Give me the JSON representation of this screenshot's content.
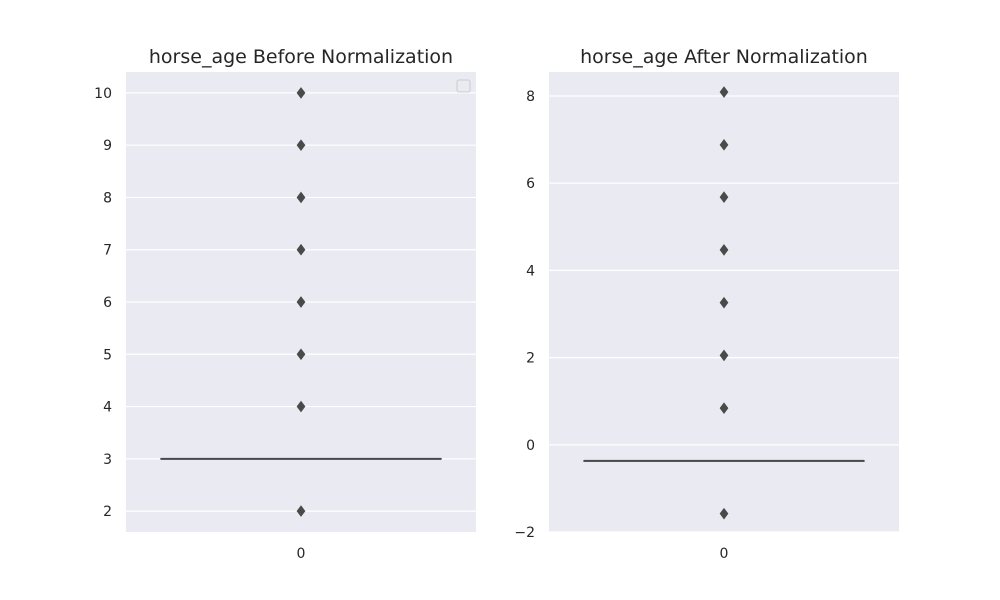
{
  "chart_data": [
    {
      "type": "box",
      "title": "horse_age Before Normalization",
      "xlabel": "",
      "ylabel": "",
      "categories": [
        "0"
      ],
      "ylim": [
        1.6,
        10.4
      ],
      "yticks": [
        2,
        3,
        4,
        5,
        6,
        7,
        8,
        9,
        10
      ],
      "ytick_labels": [
        "2",
        "3",
        "4",
        "5",
        "6",
        "7",
        "8",
        "9",
        "10"
      ],
      "box": {
        "q1": 3,
        "median": 3,
        "q3": 3,
        "whisker_low": 3,
        "whisker_high": 3
      },
      "outliers": [
        2,
        4,
        5,
        6,
        7,
        8,
        9,
        10
      ],
      "legend": "empty, top-right",
      "grid": true
    },
    {
      "type": "box",
      "title": "horse_age After Normalization",
      "xlabel": "",
      "ylabel": "",
      "categories": [
        "0"
      ],
      "ylim": [
        -2.0,
        8.55
      ],
      "yticks": [
        -2,
        0,
        2,
        4,
        6,
        8
      ],
      "ytick_labels": [
        "−2",
        "0",
        "2",
        "4",
        "6",
        "8"
      ],
      "box": {
        "q1": -0.37,
        "median": -0.37,
        "q3": -0.37,
        "whisker_low": -0.37,
        "whisker_high": -0.37
      },
      "outliers": [
        -1.58,
        0.84,
        2.05,
        3.26,
        4.47,
        5.68,
        6.88,
        8.09
      ],
      "grid": true
    }
  ],
  "style": {
    "facecolor": "#eaeaf2",
    "gridcolor": "#ffffff",
    "linecolor": "#4a4a4a",
    "textcolor": "#262626"
  }
}
